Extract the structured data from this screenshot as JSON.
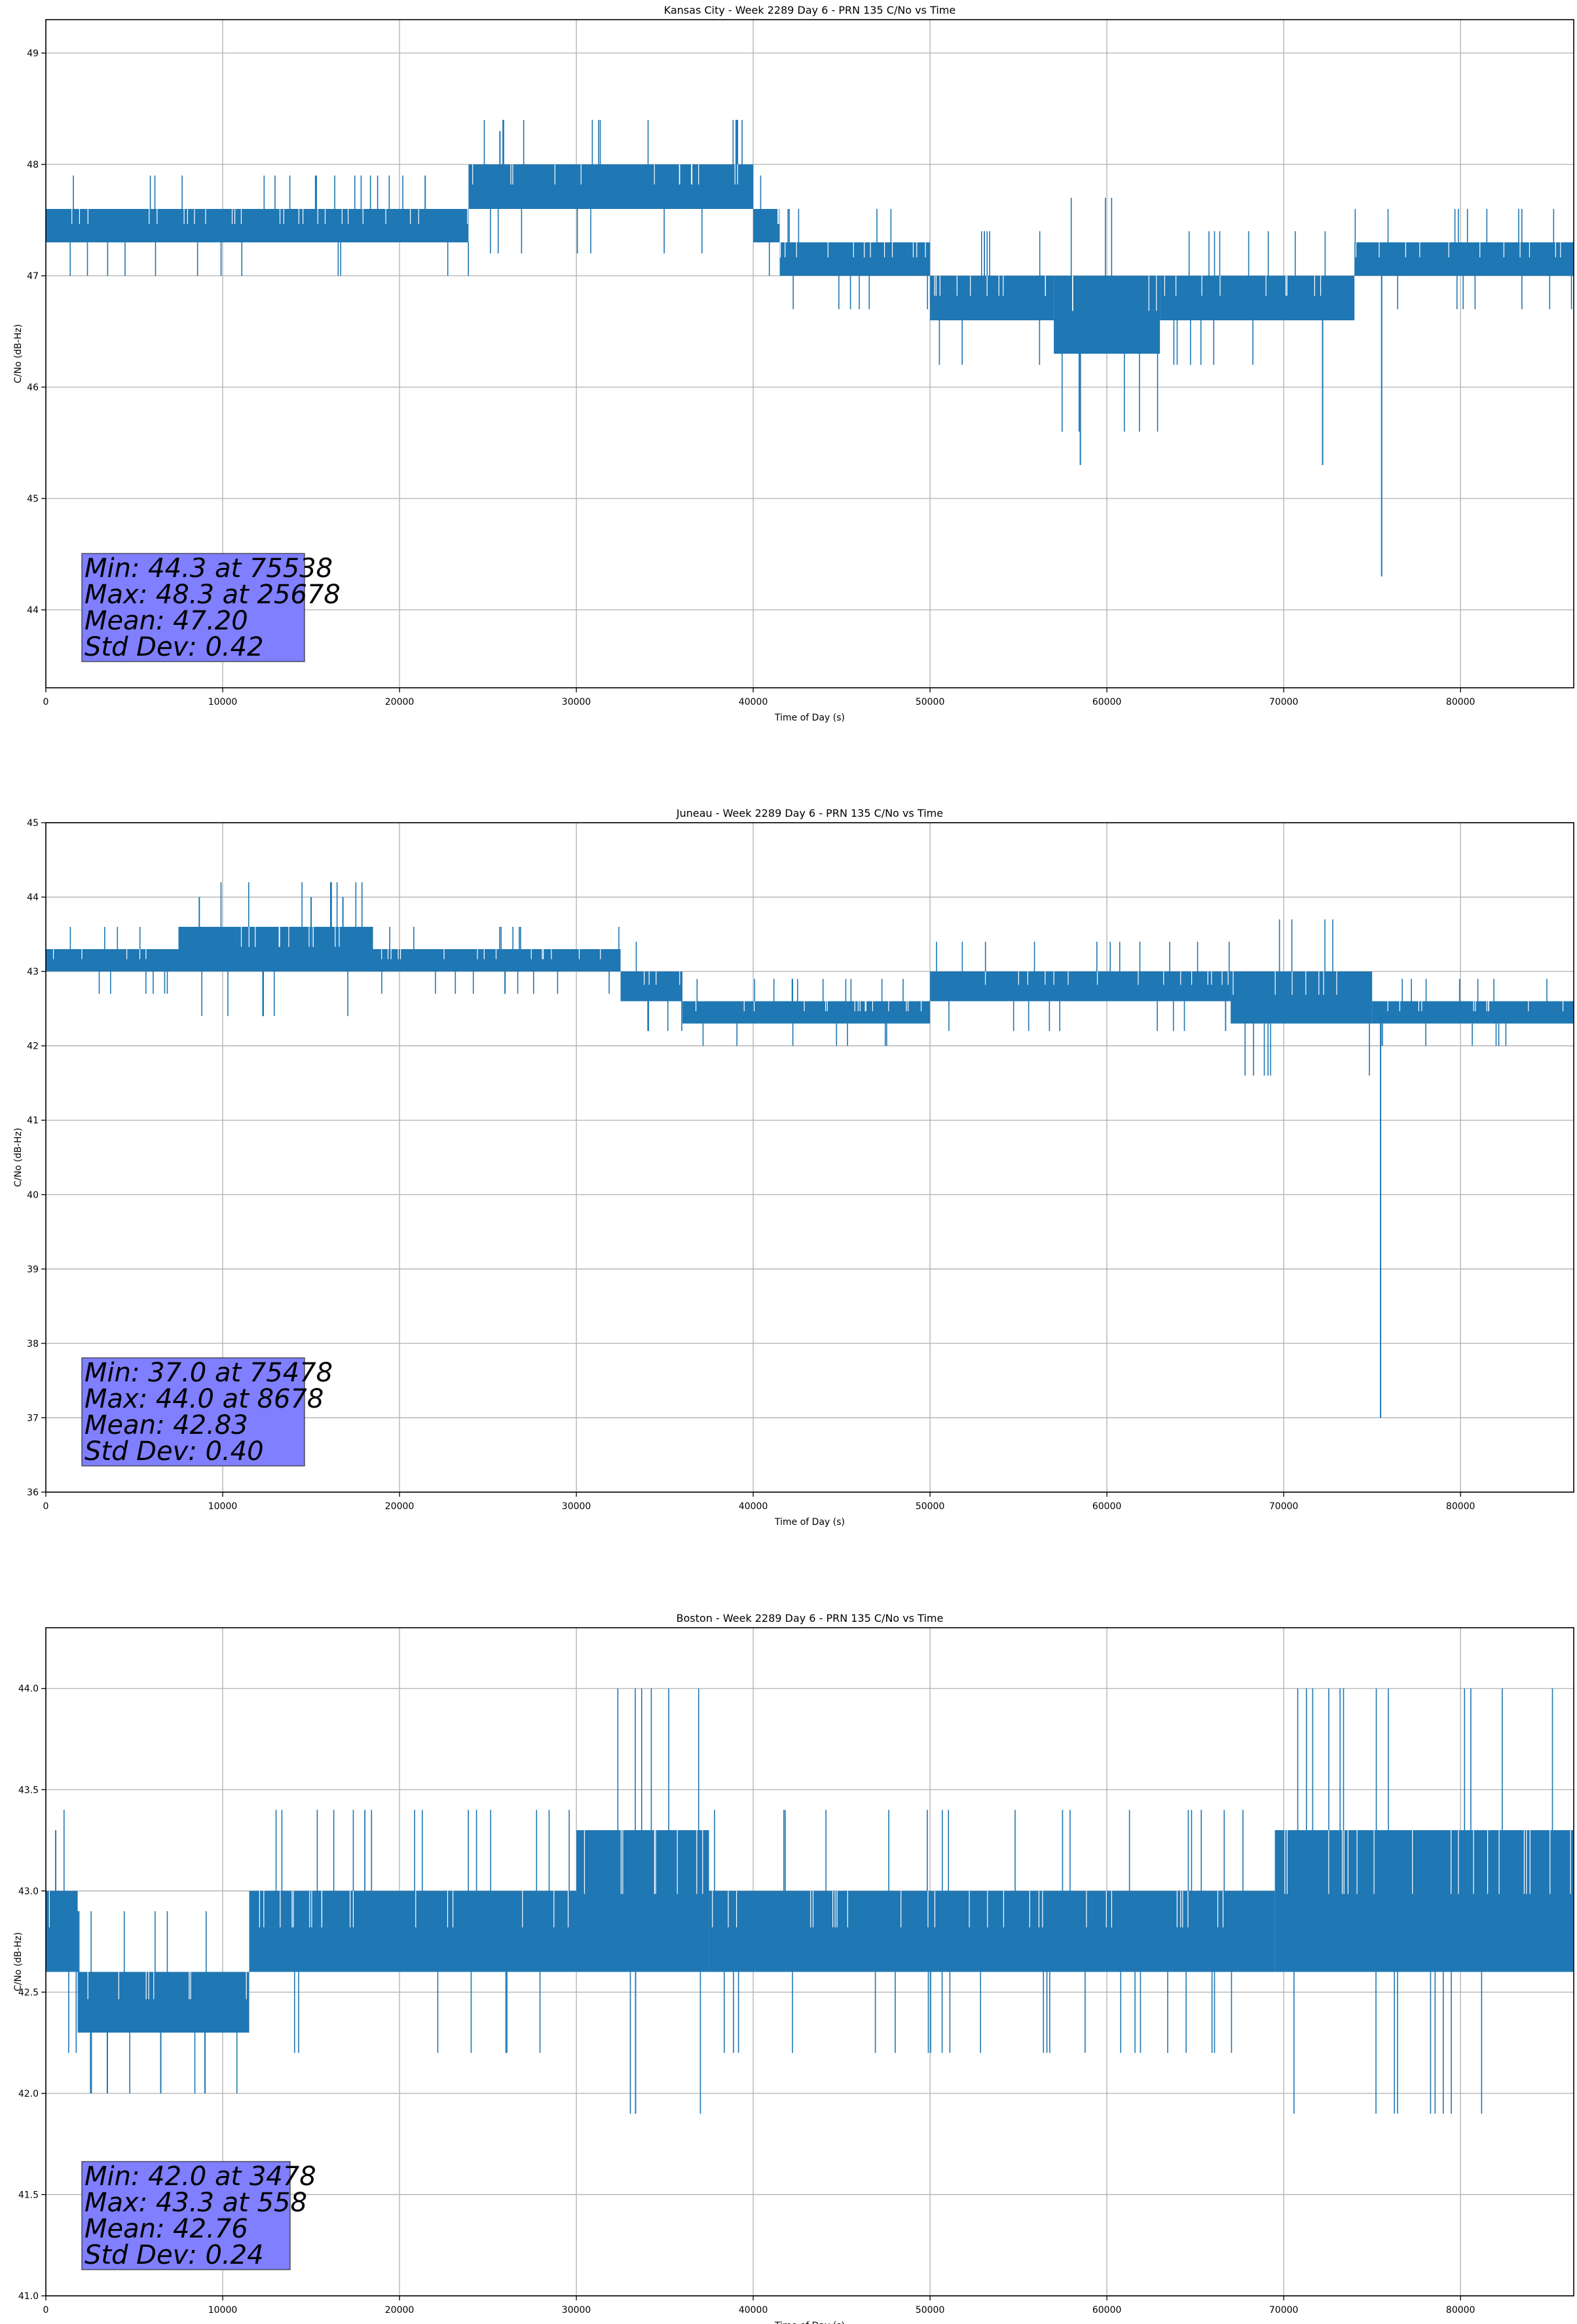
{
  "chart_data": [
    {
      "type": "line",
      "title": "Kansas City - Week 2289 Day 6 - PRN 135 C/No vs Time",
      "xlabel": "Time of Day (s)",
      "ylabel": "C/No (dB-Hz)",
      "xlim": [
        0,
        86400
      ],
      "ylim": [
        43.3,
        49.3
      ],
      "xticks": [
        0,
        10000,
        20000,
        30000,
        40000,
        50000,
        60000,
        70000,
        80000
      ],
      "yticks": [
        44,
        45,
        46,
        47,
        48,
        49
      ],
      "ytick_labels": [
        "44",
        "45",
        "46",
        "47",
        "48",
        "49"
      ],
      "grid": true,
      "line_color": "#1f77b4",
      "segments": [
        {
          "x": [
            0,
            23900
          ],
          "low": 47.3,
          "high": 47.6
        },
        {
          "x": [
            23900,
            40000
          ],
          "low": 47.6,
          "high": 48.0
        },
        {
          "x": [
            40000,
            41500
          ],
          "low": 47.3,
          "high": 47.6
        },
        {
          "x": [
            41500,
            50000
          ],
          "low": 47.0,
          "high": 47.3
        },
        {
          "x": [
            50000,
            57000
          ],
          "low": 46.6,
          "high": 47.0
        },
        {
          "x": [
            57000,
            63000
          ],
          "low": 46.3,
          "high": 47.0
        },
        {
          "x": [
            63000,
            74000
          ],
          "low": 46.6,
          "high": 47.0
        },
        {
          "x": [
            74000,
            86400
          ],
          "low": 47.0,
          "high": 47.3
        }
      ],
      "spikes": [
        {
          "x": 25678,
          "y": 48.3
        },
        {
          "x": 58500,
          "y": 45.3
        },
        {
          "x": 72200,
          "y": 45.3
        },
        {
          "x": 75538,
          "y": 44.3
        }
      ],
      "stats": {
        "min_label": "Min: 44.3 at 75538",
        "max_label": "Max: 48.3 at 25678",
        "mean_label": "Mean: 47.20",
        "std_label": "Std Dev: 0.42"
      }
    },
    {
      "type": "line",
      "title": "Juneau - Week 2289 Day 6 - PRN 135 C/No vs Time",
      "xlabel": "Time of Day (s)",
      "ylabel": "C/No (dB-Hz)",
      "xlim": [
        0,
        86400
      ],
      "ylim": [
        36,
        45
      ],
      "xticks": [
        0,
        10000,
        20000,
        30000,
        40000,
        50000,
        60000,
        70000,
        80000
      ],
      "yticks": [
        36,
        37,
        38,
        39,
        40,
        41,
        42,
        43,
        44,
        45
      ],
      "ytick_labels": [
        "36",
        "37",
        "38",
        "39",
        "40",
        "41",
        "42",
        "43",
        "44",
        "45"
      ],
      "grid": true,
      "line_color": "#1f77b4",
      "segments": [
        {
          "x": [
            0,
            7500
          ],
          "low": 43.0,
          "high": 43.3
        },
        {
          "x": [
            7500,
            18500
          ],
          "low": 43.0,
          "high": 43.6
        },
        {
          "x": [
            18500,
            32500
          ],
          "low": 43.0,
          "high": 43.3
        },
        {
          "x": [
            32500,
            36000
          ],
          "low": 42.6,
          "high": 43.0
        },
        {
          "x": [
            36000,
            50000
          ],
          "low": 42.3,
          "high": 42.6
        },
        {
          "x": [
            50000,
            67000
          ],
          "low": 42.6,
          "high": 43.0
        },
        {
          "x": [
            67000,
            75000
          ],
          "low": 42.3,
          "high": 43.0
        },
        {
          "x": [
            75000,
            86400
          ],
          "low": 42.3,
          "high": 42.6
        }
      ],
      "spikes": [
        {
          "x": 8678,
          "y": 44.0
        },
        {
          "x": 15000,
          "y": 44.0
        },
        {
          "x": 16800,
          "y": 44.0
        },
        {
          "x": 75478,
          "y": 37.0
        }
      ],
      "stats": {
        "min_label": "Min: 37.0 at 75478",
        "max_label": "Max: 44.0 at 8678",
        "mean_label": "Mean: 42.83",
        "std_label": "Std Dev: 0.40"
      }
    },
    {
      "type": "line",
      "title": "Boston - Week 2289 Day 6 - PRN 135 C/No vs Time",
      "xlabel": "Time of Day (s)",
      "ylabel": "C/No (dB-Hz)",
      "xlim": [
        0,
        86400
      ],
      "ylim": [
        41.0,
        44.3
      ],
      "xticks": [
        0,
        10000,
        20000,
        30000,
        40000,
        50000,
        60000,
        70000,
        80000
      ],
      "yticks": [
        41.0,
        41.5,
        42.0,
        42.5,
        43.0,
        43.5,
        44.0
      ],
      "ytick_labels": [
        "41.0",
        "41.5",
        "42.0",
        "42.5",
        "43.0",
        "43.5",
        "44.0"
      ],
      "grid": true,
      "line_color": "#1f77b4",
      "segments": [
        {
          "x": [
            0,
            1800
          ],
          "low": 42.6,
          "high": 43.0
        },
        {
          "x": [
            1800,
            11500
          ],
          "low": 42.3,
          "high": 42.6
        },
        {
          "x": [
            11500,
            30000
          ],
          "low": 42.6,
          "high": 43.0
        },
        {
          "x": [
            30000,
            37500
          ],
          "low": 42.6,
          "high": 43.3
        },
        {
          "x": [
            37500,
            69500
          ],
          "low": 42.6,
          "high": 43.0
        },
        {
          "x": [
            69500,
            86400
          ],
          "low": 42.6,
          "high": 43.3
        }
      ],
      "spikes": [
        {
          "x": 558,
          "y": 43.3
        },
        {
          "x": 3478,
          "y": 42.0
        },
        {
          "x": 6500,
          "y": 42.0
        },
        {
          "x": 9000,
          "y": 42.0
        }
      ],
      "stats": {
        "min_label": "Min: 42.0 at 3478",
        "max_label": "Max: 43.3 at 558",
        "mean_label": "Mean: 42.76",
        "std_label": "Std Dev: 0.24"
      }
    }
  ]
}
